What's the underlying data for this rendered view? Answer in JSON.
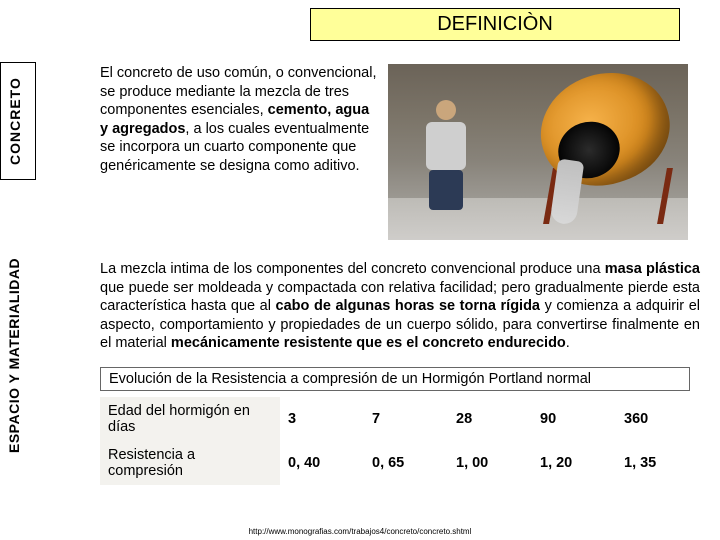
{
  "title": "DEFINICIÒN",
  "tabs": {
    "concreto": "CONCRETO",
    "espacio": "ESPACIO Y MATERIALIDAD"
  },
  "para1": {
    "t1": "El concreto de uso común, o convencional, se produce mediante la mezcla de tres componentes esenciales, ",
    "b1": "cemento, agua y agregados",
    "t2": ", a los cuales eventualmente se incorpora un cuarto componente que genéricamente se designa como aditivo."
  },
  "para2": {
    "t1": "La mezcla intima de los componentes del concreto convencional produce una ",
    "b1": "masa plástica",
    "t2": " que puede ser moldeada y compactada con relativa facilidad; pero gradualmente pierde esta característica hasta que al ",
    "b2": "cabo de algunas horas se torna rígida",
    "t3": " y comienza a adquirir el aspecto, comportamiento y propiedades de un cuerpo sólido, para convertirse finalmente en el material ",
    "b3": "mecánicamente resistente que es el concreto endurecido",
    "t4": "."
  },
  "table": {
    "caption": "Evolución de la Resistencia a compresión de un Hormigón Portland normal",
    "row1_label": "Edad del hormigón en días",
    "row2_label": "Resistencia a compresión",
    "ages": [
      "3",
      "7",
      "28",
      "90",
      "360"
    ],
    "values": [
      "0, 40",
      "0, 65",
      "1, 00",
      "1, 20",
      "1, 35"
    ]
  },
  "footer": "http://www.monografias.com/trabajos4/concreto/concreto.shtml",
  "colors": {
    "title_bg": "#ffff99"
  }
}
